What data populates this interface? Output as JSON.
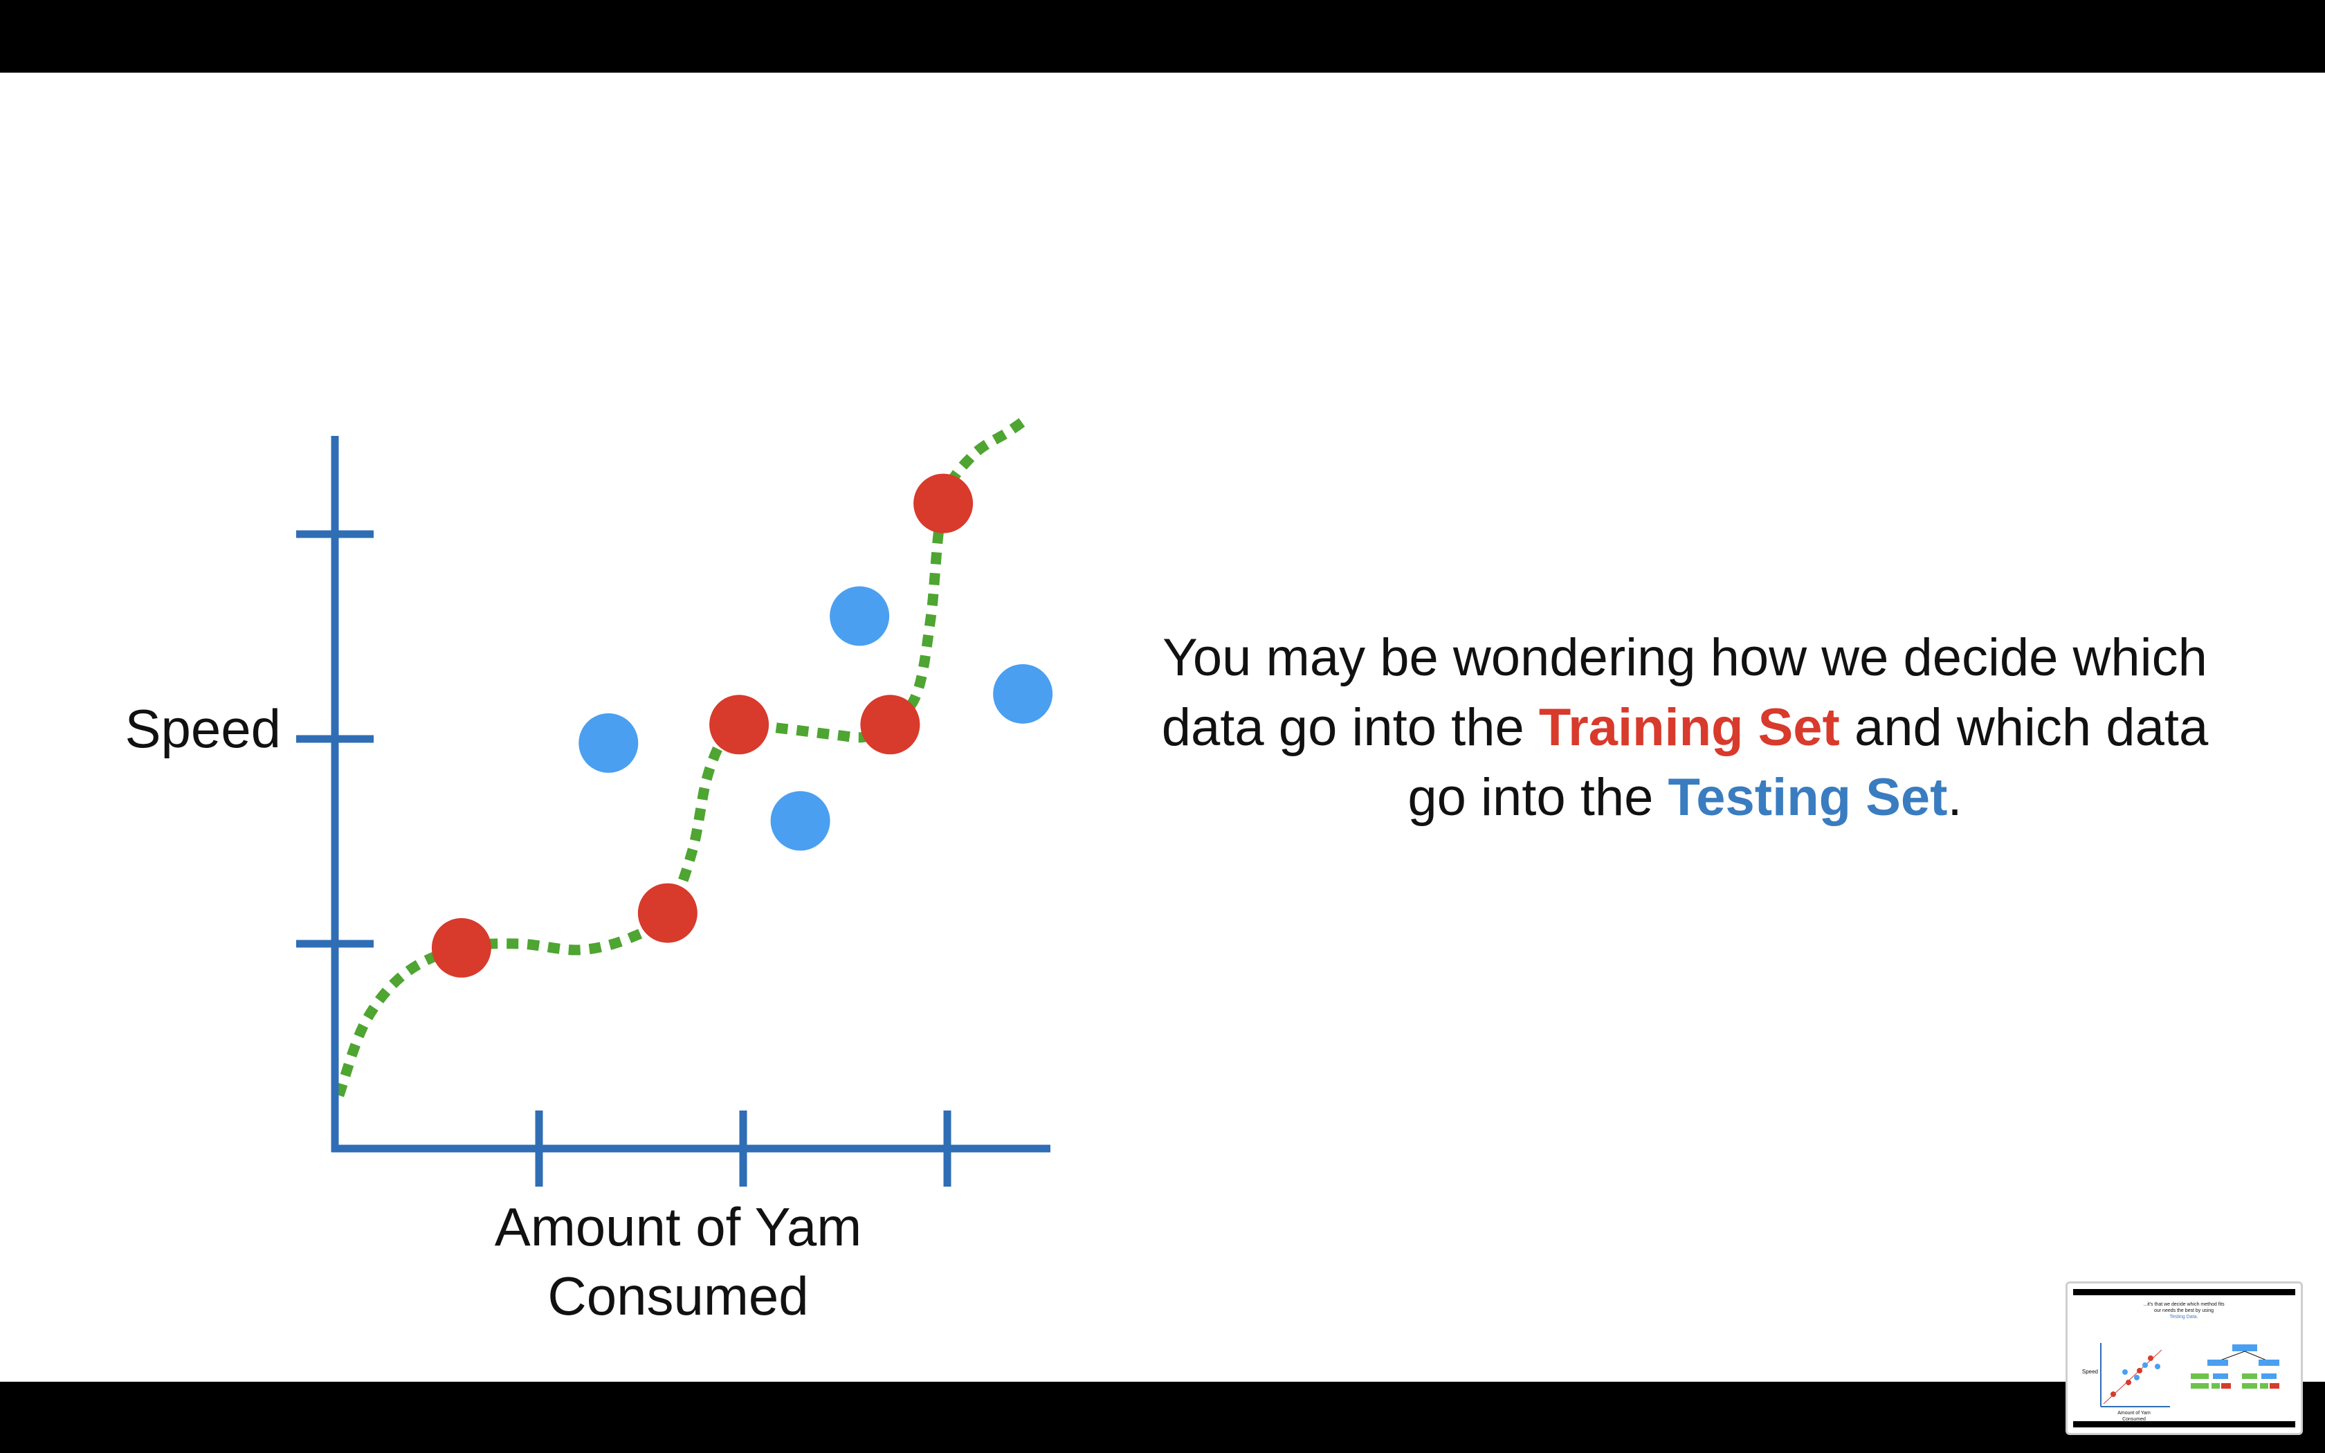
{
  "slide": {
    "message_before_training": "You may be wondering how we decide which data go into the ",
    "training_set_label": "Training Set",
    "message_middle": " and which data go into the ",
    "testing_set_label": "Testing Set",
    "message_end": "."
  },
  "colors": {
    "axis": "#2f6db5",
    "training": "#d83a2c",
    "testing": "#4a9ff0",
    "fit_line": "#4ea531",
    "training_text": "#d83a2c",
    "testing_text": "#3a7cc0"
  },
  "chart_data": {
    "type": "scatter",
    "ylabel": "Speed",
    "xlabel": "Amount of Yam Consumed",
    "xlabel_lines": [
      "Amount of Yam",
      "Consumed"
    ],
    "xlim": [
      0,
      3.5
    ],
    "ylim": [
      0,
      3.4
    ],
    "x_ticks": [
      1,
      2,
      3
    ],
    "y_ticks": [
      1,
      2,
      3
    ],
    "series": [
      {
        "role": "training",
        "points": [
          [
            0.62,
            0.98
          ],
          [
            1.63,
            1.15
          ],
          [
            1.98,
            2.07
          ],
          [
            2.72,
            2.07
          ],
          [
            2.98,
            3.15
          ]
        ]
      },
      {
        "role": "testing",
        "points": [
          [
            1.34,
            1.98
          ],
          [
            2.28,
            1.6
          ],
          [
            2.57,
            2.6
          ],
          [
            3.37,
            2.22
          ]
        ]
      }
    ],
    "fit_curve": [
      [
        0.02,
        0.26
      ],
      [
        0.15,
        0.62
      ],
      [
        0.35,
        0.86
      ],
      [
        0.62,
        0.98
      ],
      [
        0.9,
        1.0
      ],
      [
        1.2,
        0.97
      ],
      [
        1.45,
        1.03
      ],
      [
        1.63,
        1.15
      ],
      [
        1.75,
        1.45
      ],
      [
        1.82,
        1.8
      ],
      [
        1.9,
        2.0
      ],
      [
        1.98,
        2.07
      ],
      [
        2.2,
        2.05
      ],
      [
        2.45,
        2.02
      ],
      [
        2.6,
        2.01
      ],
      [
        2.72,
        2.07
      ],
      [
        2.85,
        2.22
      ],
      [
        2.92,
        2.6
      ],
      [
        2.98,
        3.15
      ],
      [
        3.12,
        3.38
      ],
      [
        3.3,
        3.5
      ],
      [
        3.4,
        3.57
      ]
    ]
  },
  "thumbnail": {
    "caption_line1": "...it's that we decide which method fits",
    "caption_line2": "our needs the best by using",
    "caption_highlight": "Testing Data.",
    "ylabel": "Speed",
    "xlabel_lines": [
      "Amount of Yam",
      "Consumed"
    ]
  }
}
